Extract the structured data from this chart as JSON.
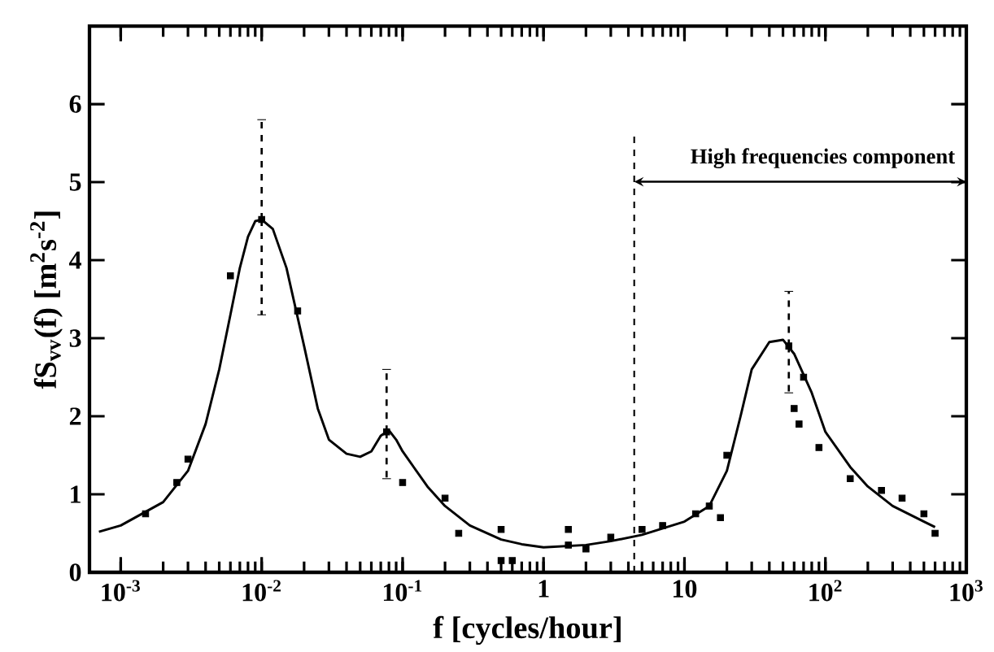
{
  "chart_data": {
    "type": "line",
    "xlabel": "f [cycles/hour]",
    "ylabel": "fS$_{vv}$(f) [m$^{2}$s$^{-2}$]",
    "log": "x",
    "xlim": [
      0.0006,
      1000
    ],
    "ylim": [
      0,
      7
    ],
    "xticks": [
      {
        "value": 0.001,
        "label": "10$^{-3}$"
      },
      {
        "value": 0.01,
        "label": "10$^{-2}$"
      },
      {
        "value": 0.1,
        "label": "10$^{-1}$"
      },
      1,
      10,
      {
        "value": 100,
        "label": "10$^{2}$"
      },
      {
        "value": 1000,
        "label": "10$^{3}$"
      }
    ],
    "yticks": [
      0,
      1,
      2,
      3,
      4,
      5,
      6
    ],
    "grid": false,
    "legend": false,
    "series": [
      {
        "color": "#000000",
        "marker": "none",
        "line_style": "solid",
        "x": [
          0.0007,
          0.001,
          0.002,
          0.003,
          0.004,
          0.005,
          0.006,
          0.007,
          0.008,
          0.009,
          0.01,
          0.012,
          0.015,
          0.02,
          0.025,
          0.03,
          0.04,
          0.05,
          0.06,
          0.07,
          0.08,
          0.09,
          0.1,
          0.15,
          0.2,
          0.3,
          0.5,
          0.7,
          1,
          2,
          3,
          5,
          10,
          15,
          20,
          25,
          30,
          40,
          50,
          60,
          80,
          100,
          150,
          200,
          300,
          500,
          600
        ],
        "values": [
          0.52,
          0.6,
          0.9,
          1.3,
          1.9,
          2.6,
          3.3,
          3.9,
          4.3,
          4.5,
          4.52,
          4.4,
          3.9,
          2.9,
          2.1,
          1.7,
          1.52,
          1.48,
          1.55,
          1.75,
          1.82,
          1.7,
          1.55,
          1.1,
          0.85,
          0.6,
          0.42,
          0.36,
          0.32,
          0.35,
          0.4,
          0.48,
          0.65,
          0.85,
          1.3,
          2.0,
          2.6,
          2.95,
          2.98,
          2.8,
          2.3,
          1.8,
          1.35,
          1.1,
          0.85,
          0.65,
          0.58
        ]
      },
      {
        "type": "scatter",
        "color": "#000000",
        "marker": "square",
        "x": [
          0.0015,
          0.0025,
          0.003,
          0.006,
          0.018,
          0.1,
          0.2,
          0.25,
          0.5,
          0.5,
          0.6,
          1.5,
          1.5,
          2,
          3,
          5,
          7,
          12,
          15,
          18,
          20,
          60,
          65,
          70,
          90,
          150,
          250,
          350,
          500,
          600
        ],
        "values": [
          0.75,
          1.15,
          1.45,
          3.8,
          3.35,
          1.15,
          0.95,
          0.5,
          0.55,
          0.15,
          0.15,
          0.35,
          0.55,
          0.3,
          0.45,
          0.55,
          0.6,
          0.75,
          0.85,
          0.7,
          1.5,
          2.1,
          1.9,
          2.5,
          1.6,
          1.2,
          1.05,
          0.95,
          0.75,
          0.5
        ]
      },
      {
        "type": "scatter",
        "color": "#000000",
        "marker": "square",
        "x": [
          0.01,
          0.077,
          55
        ],
        "values": [
          4.52,
          1.8,
          2.9
        ],
        "errors": [
          [
            3.3,
            5.8
          ],
          [
            1.2,
            2.6
          ],
          [
            2.3,
            3.6
          ]
        ]
      }
    ],
    "ref_lines": [
      {
        "axis": "x",
        "value": 4.4,
        "line_style": "dashed",
        "color": "#000000",
        "label": "High frequencies component"
      }
    ]
  }
}
